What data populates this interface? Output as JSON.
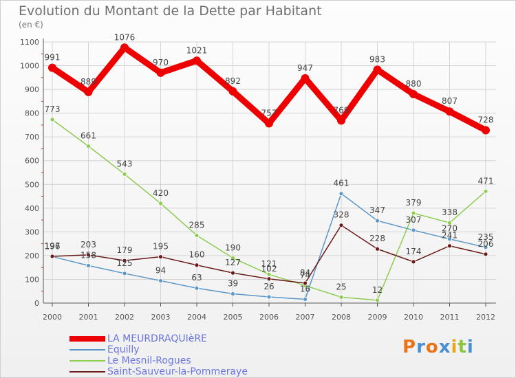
{
  "chart_data": {
    "type": "line",
    "title": "Evolution du Montant de la Dette par Habitant",
    "subtitle": "(en €)",
    "x": [
      "2000",
      "2001",
      "2002",
      "2003",
      "2004",
      "2005",
      "2006",
      "2007",
      "2008",
      "2009",
      "2010",
      "2011",
      "2012"
    ],
    "yticks": [
      "0",
      "100",
      "200",
      "300",
      "400",
      "500",
      "600",
      "700",
      "800",
      "900",
      "1000",
      "1100"
    ],
    "ylim": [
      0,
      1100
    ],
    "grid": true,
    "legend_position": "bottom-left",
    "series": [
      {
        "name": "LA MEURDRAQUIèRE",
        "color": "#ee0000",
        "values": [
          991,
          889,
          1076,
          970,
          1021,
          892,
          757,
          947,
          769,
          983,
          880,
          807,
          728
        ]
      },
      {
        "name": "Equilly",
        "color": "#5b97c7",
        "values": [
          196,
          158,
          125,
          94,
          63,
          39,
          26,
          16,
          461,
          347,
          307,
          270,
          235
        ]
      },
      {
        "name": "Le Mesnil-Rogues",
        "color": "#8ccc4f",
        "values": [
          773,
          661,
          543,
          420,
          285,
          190,
          121,
          74,
          25,
          12,
          379,
          338,
          471
        ]
      },
      {
        "name": "Saint-Sauveur-la-Pommeraye",
        "color": "#6b1a1a",
        "values": [
          197,
          203,
          179,
          195,
          160,
          127,
          102,
          84,
          328,
          228,
          174,
          241,
          206
        ]
      }
    ]
  },
  "logo": {
    "letters": [
      "P",
      "r",
      "o",
      "x",
      "i",
      "t",
      "i"
    ],
    "colors": [
      "#e8731a",
      "#4a8fd1",
      "#e8731a",
      "#4a8fd1",
      "#e8a51a",
      "#8cc63f",
      "#4a8fd1"
    ]
  }
}
